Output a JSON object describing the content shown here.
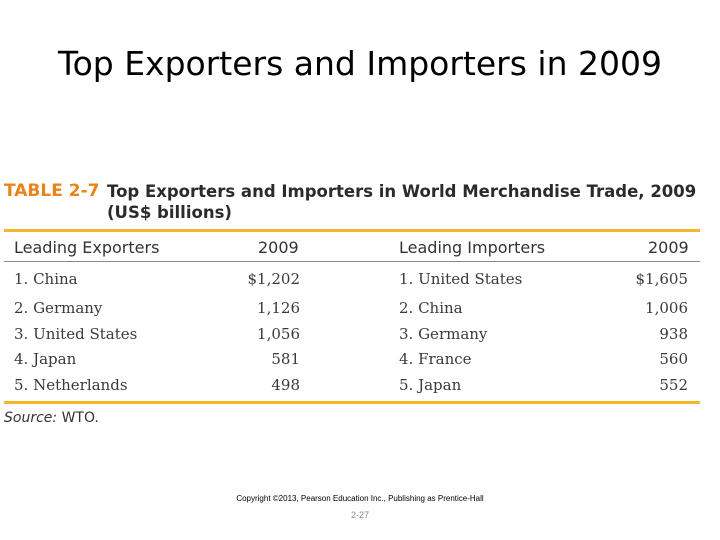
{
  "slide": {
    "title": "Top Exporters and Importers in 2009"
  },
  "table": {
    "label": "TABLE 2-7",
    "caption_line1": "Top Exporters and Importers in World Merchandise Trade, 2009",
    "caption_line2": "(US$ billions)",
    "headers": {
      "exporters": "Leading Exporters",
      "exporters_year": "2009",
      "importers": "Leading Importers",
      "importers_year": "2009"
    },
    "rows": [
      {
        "exporter": "1. China",
        "export_value": "$1,202",
        "importer": "1. United States",
        "import_value": "$1,605"
      },
      {
        "exporter": "2. Germany",
        "export_value": "1,126",
        "importer": "2. China",
        "import_value": "1,006"
      },
      {
        "exporter": "3. United States",
        "export_value": "1,056",
        "importer": "3. Germany",
        "import_value": "938"
      },
      {
        "exporter": "4. Japan",
        "export_value": "581",
        "importer": "4. France",
        "import_value": "560"
      },
      {
        "exporter": "5. Netherlands",
        "export_value": "498",
        "importer": "5. Japan",
        "import_value": "552"
      }
    ],
    "source_label": "Source:",
    "source_value": "WTO."
  },
  "footer": {
    "copyright": "Copyright ©2013, Pearson Education Inc., Publishing as Prentice-Hall",
    "page_number": "2-27"
  }
}
